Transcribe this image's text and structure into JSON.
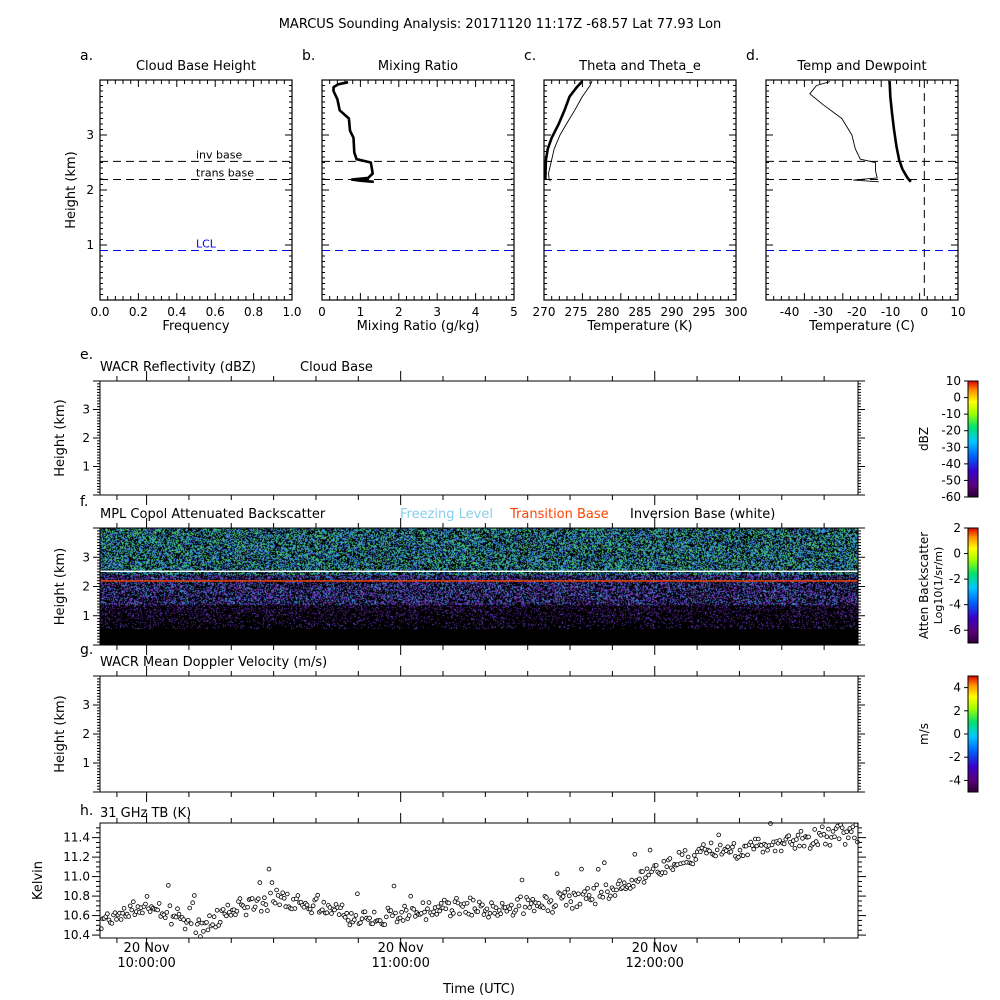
{
  "figure": {
    "title": "MARCUS Sounding Analysis: 20171120 11:17Z   -68.57 Lat   77.93 Lon"
  },
  "colors": {
    "lcl_line": "#0000ff",
    "freezing_level": "#87ceeb",
    "transition_base": "#ff4500",
    "inversion_base": "#ffffff",
    "mpl_background": "#000000",
    "axis": "#000000"
  },
  "chart_data": [
    {
      "id": "a",
      "type": "line",
      "panel_letter": "a.",
      "title": "Cloud Base Height",
      "xlabel": "Frequency",
      "ylabel": "Height (km)",
      "xlim": [
        0,
        1
      ],
      "ylim": [
        0,
        4
      ],
      "xticks": [
        "0.0",
        "0.2",
        "0.4",
        "0.6",
        "0.8",
        "1.0"
      ],
      "yticks": [
        "1",
        "2",
        "3"
      ],
      "hlines": [
        {
          "name": "inv base",
          "y": 2.52,
          "color": "#000000"
        },
        {
          "name": "trans base",
          "y": 2.19,
          "color": "#000000"
        },
        {
          "name": "LCL",
          "y": 0.9,
          "color": "#0000ff"
        }
      ]
    },
    {
      "id": "b",
      "type": "line",
      "panel_letter": "b.",
      "title": "Mixing Ratio",
      "xlabel": "Mixing Ratio (g/kg)",
      "xlim": [
        0,
        5
      ],
      "ylim": [
        0,
        4
      ],
      "xticks": [
        "0",
        "1",
        "2",
        "3",
        "4",
        "5"
      ],
      "hlines": [
        {
          "y": 2.52
        },
        {
          "y": 2.19
        },
        {
          "y": 0.9,
          "color": "#0000ff"
        }
      ],
      "series": [
        {
          "width": 2.6,
          "points": [
            [
              1.35,
              2.15
            ],
            [
              1.0,
              2.17
            ],
            [
              0.78,
              2.19
            ],
            [
              1.2,
              2.22
            ],
            [
              1.32,
              2.3
            ],
            [
              1.27,
              2.5
            ],
            [
              0.9,
              2.56
            ],
            [
              0.84,
              2.68
            ],
            [
              0.82,
              2.95
            ],
            [
              0.73,
              3.08
            ],
            [
              0.7,
              3.3
            ],
            [
              0.46,
              3.45
            ],
            [
              0.4,
              3.65
            ],
            [
              0.3,
              3.8
            ],
            [
              0.3,
              3.87
            ],
            [
              0.42,
              3.92
            ],
            [
              0.68,
              3.96
            ]
          ]
        }
      ]
    },
    {
      "id": "c",
      "type": "line",
      "panel_letter": "c.",
      "title": "Theta and Theta_e",
      "xlabel": "Temperature (K)",
      "xlim": [
        270,
        300
      ],
      "ylim": [
        0,
        4
      ],
      "xticks": [
        "270",
        "275",
        "280",
        "285",
        "290",
        "295",
        "300"
      ],
      "hlines": [
        {
          "y": 2.52
        },
        {
          "y": 2.19
        },
        {
          "y": 0.9,
          "color": "#0000ff"
        }
      ],
      "series": [
        {
          "name": "",
          "width": 2.6,
          "points": [
            [
              270.2,
              2.2
            ],
            [
              270.3,
              2.55
            ],
            [
              270.6,
              2.75
            ],
            [
              271.2,
              2.95
            ],
            [
              272.3,
              3.2
            ],
            [
              273.2,
              3.45
            ],
            [
              274.0,
              3.7
            ],
            [
              275.2,
              3.88
            ],
            [
              276.0,
              3.98
            ]
          ]
        },
        {
          "name": "",
          "width": 0.9,
          "points": [
            [
              271.0,
              2.16
            ],
            [
              270.8,
              2.2
            ],
            [
              270.7,
              2.3
            ],
            [
              271.0,
              2.45
            ],
            [
              271.3,
              2.6
            ],
            [
              271.6,
              2.75
            ],
            [
              272.5,
              3.0
            ],
            [
              273.5,
              3.2
            ],
            [
              274.8,
              3.45
            ],
            [
              276.0,
              3.7
            ],
            [
              277.2,
              3.9
            ],
            [
              277.5,
              3.98
            ]
          ]
        }
      ]
    },
    {
      "id": "d",
      "type": "line",
      "panel_letter": "d.",
      "title": "Temp and Dewpoint",
      "xlabel": "Temperature (C)",
      "xlim": [
        -47,
        10
      ],
      "ylim": [
        0,
        4
      ],
      "xticks": [
        "-40",
        "-30",
        "-20",
        "-10",
        "0",
        "10"
      ],
      "vline_x": 0,
      "hlines": [
        {
          "y": 2.52
        },
        {
          "y": 2.19
        },
        {
          "y": 0.9,
          "color": "#0000ff"
        }
      ],
      "series": [
        {
          "name": "",
          "width": 2.6,
          "points": [
            [
              -4,
              2.15
            ],
            [
              -5,
              2.22
            ],
            [
              -6.5,
              2.38
            ],
            [
              -7.5,
              2.55
            ],
            [
              -8.3,
              2.8
            ],
            [
              -9,
              3.1
            ],
            [
              -9.6,
              3.4
            ],
            [
              -10.1,
              3.7
            ],
            [
              -10.3,
              3.98
            ]
          ]
        },
        {
          "name": "",
          "width": 0.9,
          "points": [
            [
              -13.5,
              2.15
            ],
            [
              -21,
              2.18
            ],
            [
              -14,
              2.22
            ],
            [
              -14.5,
              2.35
            ],
            [
              -14.5,
              2.5
            ],
            [
              -19,
              2.56
            ],
            [
              -20.5,
              2.75
            ],
            [
              -21.5,
              3.0
            ],
            [
              -24.5,
              3.3
            ],
            [
              -30,
              3.55
            ],
            [
              -34,
              3.75
            ],
            [
              -32,
              3.9
            ],
            [
              -28,
              3.97
            ]
          ]
        }
      ]
    },
    {
      "id": "e",
      "type": "heatmap",
      "panel_letter": "e.",
      "title": "WACR Reflectivity (dBZ)",
      "subtitle": "Cloud Base",
      "ylabel": "Height (km)",
      "ylim": [
        0,
        4
      ],
      "yticks": [
        "1",
        "2",
        "3"
      ],
      "colorbar": {
        "label": "dBZ",
        "range": [
          -60,
          10
        ],
        "ticks": [
          "10",
          "0",
          "-10",
          "-20",
          "-30",
          "-40",
          "-50",
          "-60"
        ]
      }
    },
    {
      "id": "f",
      "type": "heatmap",
      "panel_letter": "f.",
      "title": "MPL Copol Attenuated Backscatter",
      "legend": [
        {
          "name": "Freezing Level",
          "color": "#87ceeb"
        },
        {
          "name": "Transition Base",
          "color": "#ff4500"
        },
        {
          "name": "Inversion Base (white)",
          "color": "#000000"
        }
      ],
      "ylabel": "Height (km)",
      "ylim": [
        0,
        4
      ],
      "yticks": [
        "1",
        "2",
        "3"
      ],
      "lines": [
        {
          "name": "inversion",
          "y": 2.52,
          "color": "#ffffff"
        },
        {
          "name": "transition",
          "y": 2.19,
          "color": "#ff4500"
        }
      ],
      "colorbar": {
        "label": "Atten Backscatter",
        "label2": "Log10(1/sr/m)",
        "range": [
          -7,
          2
        ],
        "ticks": [
          "2",
          "0",
          "-2",
          "-4",
          "-6"
        ]
      }
    },
    {
      "id": "g",
      "type": "heatmap",
      "panel_letter": "g.",
      "title": "WACR Mean Doppler Velocity (m/s)",
      "ylabel": "Height (km)",
      "ylim": [
        0,
        4
      ],
      "yticks": [
        "1",
        "2",
        "3"
      ],
      "colorbar": {
        "label": "m/s",
        "range": [
          -5,
          5
        ],
        "ticks": [
          "4",
          "2",
          "0",
          "-2",
          "-4"
        ]
      }
    },
    {
      "id": "h",
      "type": "scatter",
      "panel_letter": "h.",
      "title": "31 GHz TB (K)",
      "ylabel": "Kelvin",
      "xlabel": "Time (UTC)",
      "ylim": [
        10.37,
        11.55
      ],
      "yticks": [
        "10.4",
        "10.6",
        "10.8",
        "11.0",
        "11.2",
        "11.4"
      ],
      "xlim_minutes": [
        -11,
        168
      ],
      "xticks": [
        {
          "minute": 0,
          "l1": "20 Nov",
          "l2": "10:00:00"
        },
        {
          "minute": 60,
          "l1": "20 Nov",
          "l2": "11:00:00"
        },
        {
          "minute": 120,
          "l1": "20 Nov",
          "l2": "12:00:00"
        }
      ],
      "trend": [
        [
          -11,
          10.52
        ],
        [
          0,
          10.72
        ],
        [
          5,
          10.62
        ],
        [
          12,
          10.46
        ],
        [
          20,
          10.66
        ],
        [
          30,
          10.78
        ],
        [
          40,
          10.72
        ],
        [
          50,
          10.57
        ],
        [
          60,
          10.6
        ],
        [
          70,
          10.68
        ],
        [
          80,
          10.67
        ],
        [
          90,
          10.7
        ],
        [
          100,
          10.76
        ],
        [
          110,
          10.88
        ],
        [
          120,
          11.05
        ],
        [
          130,
          11.22
        ],
        [
          140,
          11.3
        ],
        [
          150,
          11.36
        ],
        [
          160,
          11.42
        ],
        [
          168,
          11.45
        ]
      ],
      "noise": 0.09
    }
  ]
}
